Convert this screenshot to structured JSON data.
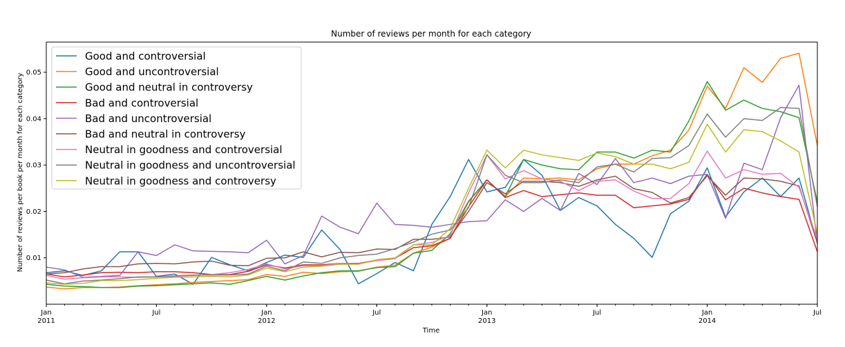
{
  "chart_data": {
    "type": "line",
    "title": "Number of reviews per month for each category",
    "xlabel": "Time",
    "ylabel": "Number of reviews per book per month for each category",
    "ylim": [
      0,
      0.0565
    ],
    "yticks": [
      0.01,
      0.02,
      0.03,
      0.04,
      0.05
    ],
    "ytick_labels": [
      "0.01",
      "0.02",
      "0.03",
      "0.04",
      "0.05"
    ],
    "x_months": [
      "2011-01",
      "2011-02",
      "2011-03",
      "2011-04",
      "2011-05",
      "2011-06",
      "2011-07",
      "2011-08",
      "2011-09",
      "2011-10",
      "2011-11",
      "2011-12",
      "2012-01",
      "2012-02",
      "2012-03",
      "2012-04",
      "2012-05",
      "2012-06",
      "2012-07",
      "2012-08",
      "2012-09",
      "2012-10",
      "2012-11",
      "2012-12",
      "2013-01",
      "2013-02",
      "2013-03",
      "2013-04",
      "2013-05",
      "2013-06",
      "2013-07",
      "2013-08",
      "2013-09",
      "2013-10",
      "2013-11",
      "2013-12",
      "2014-01",
      "2014-02",
      "2014-03",
      "2014-04",
      "2014-05",
      "2014-06",
      "2014-07"
    ],
    "xticks": [
      {
        "month": "2011-01",
        "label": "Jan",
        "year": "2011"
      },
      {
        "month": "2011-07",
        "label": "Jul",
        "year": ""
      },
      {
        "month": "2012-01",
        "label": "Jan",
        "year": "2012"
      },
      {
        "month": "2012-07",
        "label": "Jul",
        "year": ""
      },
      {
        "month": "2013-01",
        "label": "Jan",
        "year": "2013"
      },
      {
        "month": "2013-07",
        "label": "Jul",
        "year": ""
      },
      {
        "month": "2014-01",
        "label": "Jan",
        "year": "2014"
      },
      {
        "month": "2014-07",
        "label": "Jul",
        "year": ""
      }
    ],
    "legend_position": "top-left",
    "grid": false,
    "series": [
      {
        "name": "Good and controversial",
        "color": "#1f77b4",
        "values": [
          0.0068,
          0.0072,
          0.0062,
          0.0072,
          0.0113,
          0.0113,
          0.006,
          0.0065,
          0.0043,
          0.0101,
          0.0085,
          0.0072,
          0.009,
          0.0106,
          0.0101,
          0.016,
          0.0118,
          0.0044,
          0.0066,
          0.009,
          0.0072,
          0.0172,
          0.0232,
          0.0312,
          0.0242,
          0.0252,
          0.0312,
          0.0278,
          0.0202,
          0.023,
          0.0212,
          0.0172,
          0.0142,
          0.0101,
          0.0195,
          0.0222,
          0.0294,
          0.0188,
          0.0242,
          0.0272,
          0.0232,
          0.0272,
          0.0132
        ]
      },
      {
        "name": "Good and uncontroversial",
        "color": "#ff7f0e",
        "values": [
          0.0037,
          0.0033,
          0.0036,
          0.0036,
          0.0037,
          0.004,
          0.0042,
          0.0044,
          0.0047,
          0.0049,
          0.0051,
          0.0053,
          0.0064,
          0.006,
          0.0069,
          0.0066,
          0.007,
          0.0071,
          0.008,
          0.0084,
          0.011,
          0.0123,
          0.0142,
          0.022,
          0.0268,
          0.0232,
          0.0272,
          0.027,
          0.0272,
          0.0268,
          0.0292,
          0.0302,
          0.0302,
          0.032,
          0.0332,
          0.0375,
          0.047,
          0.0422,
          0.051,
          0.0478,
          0.053,
          0.0541,
          0.0342
        ]
      },
      {
        "name": "Good and neutral in controversy",
        "color": "#2ca02c",
        "values": [
          0.0043,
          0.0039,
          0.0038,
          0.0036,
          0.0036,
          0.0039,
          0.004,
          0.0042,
          0.0044,
          0.0046,
          0.0043,
          0.0051,
          0.006,
          0.0052,
          0.0061,
          0.0068,
          0.0072,
          0.0072,
          0.0079,
          0.0081,
          0.011,
          0.0116,
          0.0152,
          0.0222,
          0.0268,
          0.0232,
          0.0312,
          0.03,
          0.0292,
          0.029,
          0.0328,
          0.0328,
          0.0315,
          0.0332,
          0.0328,
          0.0395,
          0.048,
          0.0418,
          0.044,
          0.0422,
          0.0415,
          0.0402,
          0.022
        ]
      },
      {
        "name": "Bad and controversial",
        "color": "#d62728",
        "values": [
          0.0065,
          0.0059,
          0.0063,
          0.0068,
          0.0069,
          0.0068,
          0.007,
          0.007,
          0.0068,
          0.0064,
          0.0064,
          0.0071,
          0.0085,
          0.0078,
          0.0085,
          0.0085,
          0.0088,
          0.0088,
          0.0095,
          0.0099,
          0.0122,
          0.0126,
          0.0142,
          0.021,
          0.0268,
          0.023,
          0.0245,
          0.0232,
          0.0236,
          0.024,
          0.0235,
          0.0235,
          0.0208,
          0.0212,
          0.0216,
          0.0226,
          0.028,
          0.0225,
          0.025,
          0.024,
          0.0232,
          0.0226,
          0.0113
        ]
      },
      {
        "name": "Bad and uncontroversial",
        "color": "#9467bd",
        "values": [
          0.008,
          0.0074,
          0.0058,
          0.006,
          0.0062,
          0.0113,
          0.0105,
          0.0128,
          0.0115,
          0.0114,
          0.0113,
          0.0111,
          0.0138,
          0.0087,
          0.0105,
          0.019,
          0.0166,
          0.0152,
          0.0218,
          0.0172,
          0.017,
          0.0166,
          0.0172,
          0.0178,
          0.018,
          0.0225,
          0.02,
          0.0228,
          0.0202,
          0.0282,
          0.0258,
          0.0314,
          0.0262,
          0.0272,
          0.026,
          0.0276,
          0.028,
          0.0185,
          0.0304,
          0.029,
          0.0402,
          0.0472,
          0.013
        ]
      },
      {
        "name": "Bad and neutral in controversy",
        "color": "#8c564b",
        "values": [
          0.0065,
          0.0068,
          0.0076,
          0.0081,
          0.0081,
          0.0087,
          0.0088,
          0.0087,
          0.0091,
          0.0093,
          0.0084,
          0.0083,
          0.0099,
          0.01,
          0.0113,
          0.0102,
          0.0112,
          0.0111,
          0.0119,
          0.0118,
          0.014,
          0.014,
          0.0145,
          0.02,
          0.0262,
          0.0238,
          0.0265,
          0.0265,
          0.0262,
          0.0254,
          0.0268,
          0.0276,
          0.0249,
          0.0241,
          0.0218,
          0.023,
          0.0277,
          0.0235,
          0.0272,
          0.027,
          0.0265,
          0.0255,
          0.0132
        ]
      },
      {
        "name": "Neutral in goodness and controversial",
        "color": "#e377c2",
        "values": [
          0.0062,
          0.0054,
          0.0057,
          0.0059,
          0.0059,
          0.0058,
          0.0059,
          0.006,
          0.0062,
          0.0064,
          0.0068,
          0.0075,
          0.0087,
          0.0076,
          0.0083,
          0.0083,
          0.0088,
          0.0087,
          0.0094,
          0.0098,
          0.0128,
          0.0133,
          0.0148,
          0.024,
          0.0322,
          0.027,
          0.0288,
          0.027,
          0.0265,
          0.0245,
          0.0265,
          0.0268,
          0.0244,
          0.0228,
          0.0228,
          0.026,
          0.033,
          0.0272,
          0.029,
          0.028,
          0.0282,
          0.0252,
          0.014
        ]
      },
      {
        "name": "Neutral in goodness and uncontroversial",
        "color": "#7f7f7f",
        "values": [
          0.0052,
          0.0044,
          0.005,
          0.0052,
          0.0055,
          0.0059,
          0.0059,
          0.0061,
          0.0063,
          0.0063,
          0.0063,
          0.0065,
          0.0082,
          0.0072,
          0.0091,
          0.0088,
          0.01,
          0.0105,
          0.0108,
          0.012,
          0.0134,
          0.0151,
          0.016,
          0.0208,
          0.0322,
          0.0278,
          0.0262,
          0.0262,
          0.0268,
          0.0262,
          0.0296,
          0.0302,
          0.0285,
          0.0314,
          0.0316,
          0.0342,
          0.041,
          0.036,
          0.04,
          0.0396,
          0.0424,
          0.0422,
          0.021
        ]
      },
      {
        "name": "Neutral in goodness and controversy",
        "color": "#bcbd22",
        "values": [
          0.0046,
          0.0043,
          0.0045,
          0.0051,
          0.0051,
          0.0053,
          0.0056,
          0.0058,
          0.0059,
          0.006,
          0.0059,
          0.0063,
          0.0078,
          0.007,
          0.008,
          0.0082,
          0.0086,
          0.0086,
          0.0096,
          0.01,
          0.0128,
          0.0128,
          0.0163,
          0.025,
          0.0332,
          0.0294,
          0.0332,
          0.0322,
          0.0316,
          0.031,
          0.0326,
          0.0318,
          0.0302,
          0.0302,
          0.0292,
          0.0306,
          0.0388,
          0.0328,
          0.0376,
          0.0372,
          0.0352,
          0.0328,
          0.0152
        ]
      }
    ]
  }
}
